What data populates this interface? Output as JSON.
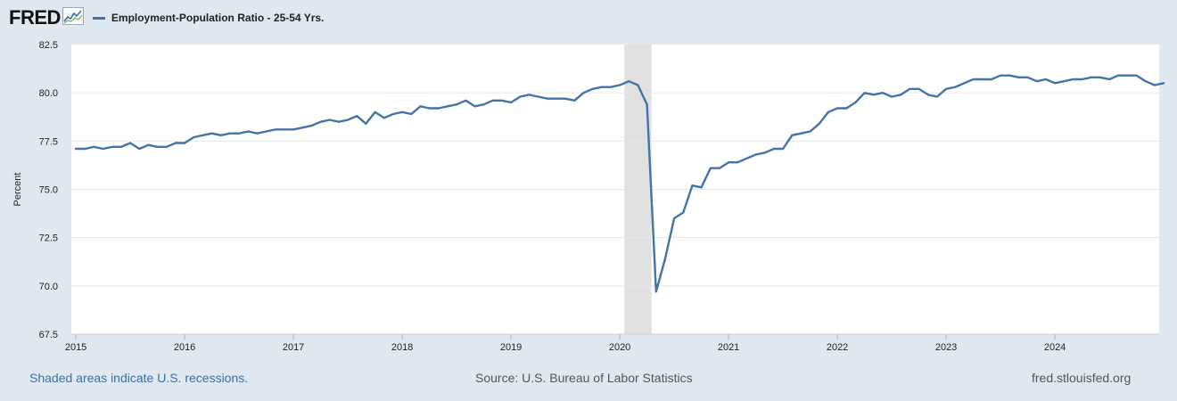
{
  "header": {
    "logo_text": "FRED",
    "logo_icon": "fred-line-graph-icon",
    "series_label": "Employment-Population Ratio - 25-54 Yrs."
  },
  "footer": {
    "left": "Shaded areas indicate U.S. recessions.",
    "center": "Source: U.S. Bureau of Labor Statistics",
    "right": "fred.stlouisfed.org"
  },
  "colors": {
    "background": "#e1e9f0",
    "plot_background": "#ffffff",
    "series": "#4572a7",
    "recession": "#e1e1e1",
    "grid": "#e6e6e6",
    "link": "#3a6ea5"
  },
  "chart_data": {
    "type": "line",
    "title": "",
    "xlabel": "",
    "ylabel": "Percent",
    "ylim": [
      67.5,
      82.5
    ],
    "yticks": [
      "67.5",
      "70.0",
      "72.5",
      "75.0",
      "77.5",
      "80.0",
      "82.5"
    ],
    "xlim": [
      "2015-01",
      "2024-12"
    ],
    "xticks": [
      "2015",
      "2016",
      "2017",
      "2018",
      "2019",
      "2020",
      "2021",
      "2022",
      "2023",
      "2024"
    ],
    "grid": true,
    "legend": "top-left",
    "recessions": [
      {
        "start": "2020-02",
        "end": "2020-04"
      }
    ],
    "series": [
      {
        "name": "Employment-Population Ratio - 25-54 Yrs.",
        "start": "2015-01",
        "frequency": "monthly",
        "values": [
          77.1,
          77.1,
          77.2,
          77.1,
          77.2,
          77.2,
          77.4,
          77.1,
          77.3,
          77.2,
          77.2,
          77.4,
          77.4,
          77.7,
          77.8,
          77.9,
          77.8,
          77.9,
          77.9,
          78.0,
          77.9,
          78.0,
          78.1,
          78.1,
          78.1,
          78.2,
          78.3,
          78.5,
          78.6,
          78.5,
          78.6,
          78.8,
          78.4,
          79.0,
          78.7,
          78.9,
          79.0,
          78.9,
          79.3,
          79.2,
          79.2,
          79.3,
          79.4,
          79.6,
          79.3,
          79.4,
          79.6,
          79.6,
          79.5,
          79.8,
          79.9,
          79.8,
          79.7,
          79.7,
          79.7,
          79.6,
          80.0,
          80.2,
          80.3,
          80.3,
          80.4,
          80.6,
          80.4,
          79.4,
          69.7,
          71.4,
          73.5,
          73.8,
          75.2,
          75.1,
          76.1,
          76.1,
          76.4,
          76.4,
          76.6,
          76.8,
          76.9,
          77.1,
          77.1,
          77.8,
          77.9,
          78.0,
          78.4,
          79.0,
          79.2,
          79.2,
          79.5,
          80.0,
          79.9,
          80.0,
          79.8,
          79.9,
          80.2,
          80.2,
          79.9,
          79.8,
          80.2,
          80.3,
          80.5,
          80.7,
          80.7,
          80.7,
          80.9,
          80.9,
          80.8,
          80.8,
          80.6,
          80.7,
          80.5,
          80.6,
          80.7,
          80.7,
          80.8,
          80.8,
          80.7,
          80.9,
          80.9,
          80.9,
          80.6,
          80.4,
          80.5
        ]
      }
    ]
  }
}
